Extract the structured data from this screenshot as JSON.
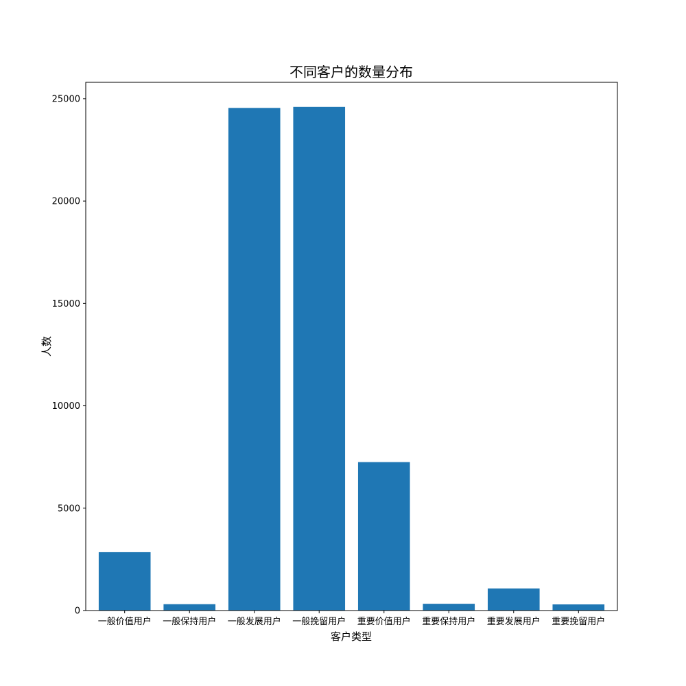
{
  "chart_data": {
    "type": "bar",
    "title": "不同客户的数量分布",
    "xlabel": "客户类型",
    "ylabel": "人数",
    "categories": [
      "一般价值用户",
      "一般保持用户",
      "一般发展用户",
      "一般挽留用户",
      "重要价值用户",
      "重要保持用户",
      "重要发展用户",
      "重要挽留用户"
    ],
    "values": [
      2850,
      310,
      24550,
      24600,
      7250,
      330,
      1080,
      300
    ],
    "ylim": [
      0,
      25800
    ],
    "yticks": [
      0,
      5000,
      10000,
      15000,
      20000,
      25000
    ],
    "bar_color": "#1f77b4",
    "grid": false,
    "legend": "none"
  }
}
